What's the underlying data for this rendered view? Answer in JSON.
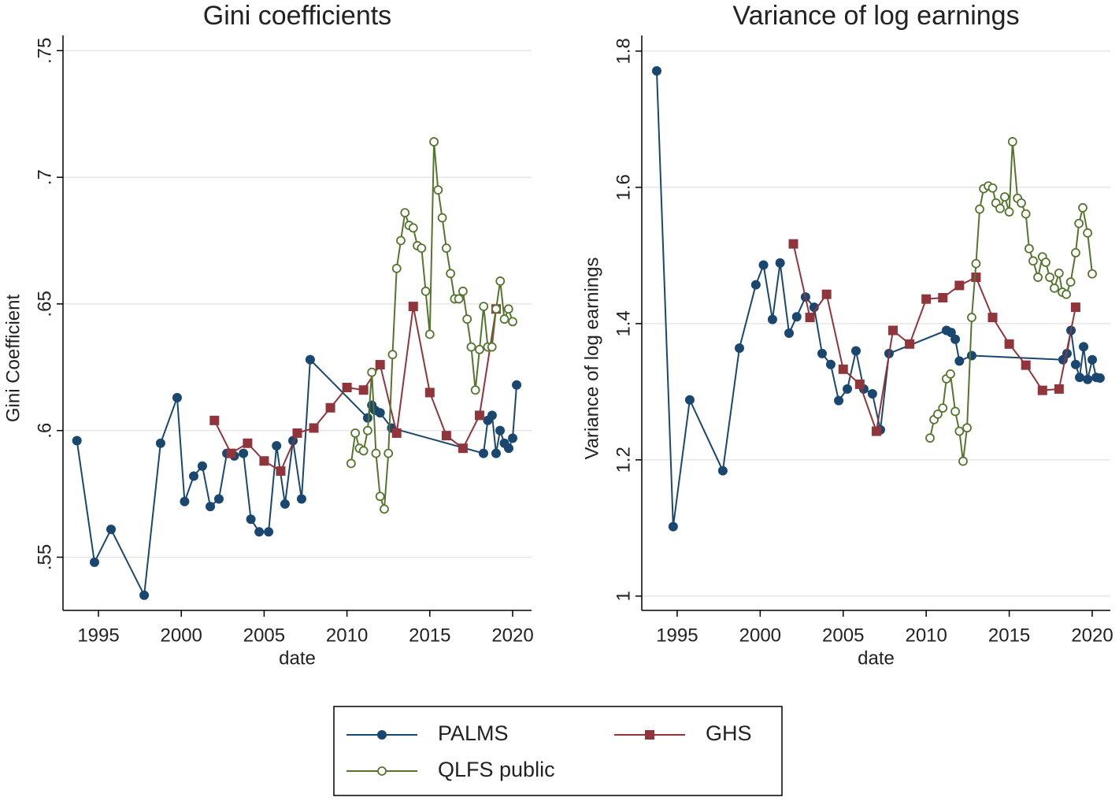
{
  "chart_data": [
    {
      "type": "line",
      "title": "Gini coefficients",
      "x_label": "date",
      "y_label": "Gini Coefficient",
      "xlim": [
        1992.86,
        2021.14
      ],
      "xticks": [
        1995,
        2000,
        2005,
        2010,
        2015,
        2020
      ],
      "ylim": [
        0.529,
        0.756
      ],
      "yticks": [
        {
          "value": 0.55,
          "label": ".55"
        },
        {
          "value": 0.6,
          "label": ".6"
        },
        {
          "value": 0.65,
          "label": ".65"
        },
        {
          "value": 0.7,
          "label": ".7"
        },
        {
          "value": 0.75,
          "label": ".75"
        }
      ],
      "grid": true,
      "series": [
        {
          "name": "PALMS",
          "color": "#1a476f",
          "marker": "circle",
          "x": [
            1993.7,
            1994.76,
            1995.76,
            1997.76,
            1998.75,
            1999.75,
            2000.2,
            2000.75,
            2001.27,
            2001.75,
            2002.27,
            2002.75,
            2003.2,
            2003.75,
            2004.2,
            2004.7,
            2005.27,
            2005.75,
            2006.26,
            2006.74,
            2007.26,
            2007.78,
            2011.25,
            2011.5,
            2011.7,
            2012.0,
            2012.7,
            2018.24,
            2018.5,
            2018.76,
            2019.0,
            2019.24,
            2019.5,
            2019.76,
            2020.0,
            2020.24
          ],
          "values": [
            0.596,
            0.548,
            0.561,
            0.535,
            0.595,
            0.613,
            0.572,
            0.582,
            0.586,
            0.57,
            0.573,
            0.591,
            0.59,
            0.591,
            0.565,
            0.56,
            0.56,
            0.594,
            0.571,
            0.596,
            0.573,
            0.628,
            0.605,
            0.61,
            0.608,
            0.607,
            0.601,
            0.591,
            0.604,
            0.606,
            0.591,
            0.6,
            0.595,
            0.593,
            0.597,
            0.618
          ]
        },
        {
          "name": "GHS",
          "color": "#90353b",
          "marker": "square",
          "x": [
            2002,
            2003,
            2004,
            2005,
            2006,
            2007,
            2008,
            2009,
            2010,
            2011,
            2012,
            2013,
            2014,
            2015,
            2016,
            2017,
            2018,
            2019
          ],
          "values": [
            0.604,
            0.591,
            0.595,
            0.588,
            0.584,
            0.599,
            0.601,
            0.609,
            0.617,
            0.616,
            0.626,
            0.599,
            0.649,
            0.615,
            0.598,
            0.593,
            0.606,
            0.648
          ]
        },
        {
          "name": "QLFS public",
          "color": "#55752f",
          "marker": "hollow-circle",
          "x": [
            2010.25,
            2010.5,
            2010.75,
            2011.0,
            2011.25,
            2011.5,
            2011.75,
            2012.0,
            2012.25,
            2012.5,
            2012.75,
            2013.0,
            2013.25,
            2013.5,
            2013.75,
            2014.0,
            2014.25,
            2014.5,
            2014.75,
            2015.0,
            2015.25,
            2015.5,
            2015.75,
            2016.0,
            2016.25,
            2016.5,
            2016.75,
            2017.0,
            2017.25,
            2017.5,
            2017.75,
            2018.0,
            2018.25,
            2018.5,
            2018.75,
            2019.0,
            2019.25,
            2019.5,
            2019.75,
            2020.0
          ],
          "values": [
            0.587,
            0.599,
            0.593,
            0.592,
            0.6,
            0.623,
            0.591,
            0.574,
            0.569,
            0.591,
            0.63,
            0.664,
            0.675,
            0.686,
            0.681,
            0.68,
            0.673,
            0.672,
            0.655,
            0.638,
            0.714,
            0.695,
            0.684,
            0.672,
            0.662,
            0.652,
            0.652,
            0.655,
            0.644,
            0.633,
            0.616,
            0.632,
            0.649,
            0.633,
            0.633,
            0.648,
            0.659,
            0.644,
            0.648,
            0.643
          ]
        }
      ]
    },
    {
      "type": "line",
      "title": "Variance of log earnings",
      "x_label": "date",
      "y_label": "Variance of log earnings",
      "xlim": [
        1992.87,
        2021.09
      ],
      "xticks": [
        1995,
        2000,
        2005,
        2010,
        2015,
        2020
      ],
      "ylim": [
        0.979,
        1.823
      ],
      "yticks": [
        1,
        1.2,
        1.4,
        1.6,
        1.8
      ],
      "grid": true,
      "series": [
        {
          "color": "#1a476f",
          "marker": "circle",
          "x": [
            1993.77,
            1994.76,
            1995.76,
            1997.75,
            1998.75,
            1999.74,
            2000.2,
            2000.74,
            2001.2,
            2001.74,
            2002.2,
            2002.73,
            2003.25,
            2003.73,
            2004.25,
            2004.73,
            2005.25,
            2005.77,
            2006.24,
            2006.76,
            2007.24,
            2007.76,
            2011.22,
            2011.5,
            2011.75,
            2012.0,
            2012.74,
            2018.24,
            2018.48,
            2018.72,
            2019.0,
            2019.24,
            2019.48,
            2019.72,
            2020.0,
            2020.24,
            2020.47
          ],
          "values": [
            1.771,
            1.102,
            1.288,
            1.184,
            1.364,
            1.457,
            1.486,
            1.406,
            1.489,
            1.386,
            1.41,
            1.439,
            1.424,
            1.356,
            1.34,
            1.287,
            1.304,
            1.36,
            1.304,
            1.297,
            1.244,
            1.356,
            1.39,
            1.387,
            1.377,
            1.345,
            1.353,
            1.347,
            1.356,
            1.39,
            1.34,
            1.321,
            1.366,
            1.318,
            1.347,
            1.321,
            1.32
          ]
        },
        {
          "color": "#90353b",
          "marker": "square",
          "x": [
            2002,
            2003,
            2004,
            2005,
            2006,
            2007,
            2008,
            2009,
            2010,
            2011,
            2012,
            2013,
            2014,
            2015,
            2016,
            2017,
            2018,
            2019
          ],
          "values": [
            1.517,
            1.409,
            1.443,
            1.333,
            1.311,
            1.242,
            1.39,
            1.37,
            1.436,
            1.438,
            1.456,
            1.468,
            1.409,
            1.37,
            1.339,
            1.302,
            1.304,
            1.424
          ]
        },
        {
          "color": "#55752f",
          "marker": "hollow-circle",
          "x": [
            2010.23,
            2010.47,
            2010.7,
            2011.0,
            2011.22,
            2011.46,
            2011.75,
            2012.0,
            2012.22,
            2012.46,
            2012.74,
            2013.0,
            2013.22,
            2013.46,
            2013.74,
            2014.0,
            2014.2,
            2014.45,
            2014.73,
            2015.0,
            2015.2,
            2015.5,
            2015.73,
            2016.0,
            2016.2,
            2016.44,
            2016.73,
            2017.0,
            2017.2,
            2017.44,
            2017.72,
            2018.0,
            2018.2,
            2018.44,
            2018.7,
            2019.0,
            2019.2,
            2019.43,
            2019.72,
            2020.0
          ],
          "values": [
            1.232,
            1.259,
            1.267,
            1.276,
            1.319,
            1.326,
            1.271,
            1.242,
            1.198,
            1.247,
            1.409,
            1.488,
            1.568,
            1.598,
            1.602,
            1.599,
            1.577,
            1.569,
            1.586,
            1.564,
            1.667,
            1.584,
            1.577,
            1.561,
            1.51,
            1.492,
            1.468,
            1.498,
            1.49,
            1.468,
            1.452,
            1.474,
            1.446,
            1.443,
            1.461,
            1.504,
            1.547,
            1.57,
            1.533,
            1.473
          ]
        }
      ]
    }
  ]
}
